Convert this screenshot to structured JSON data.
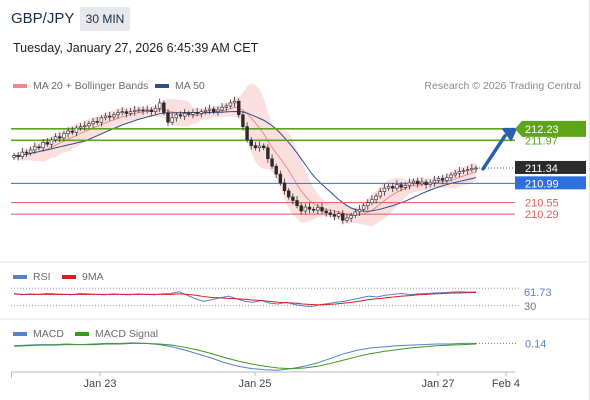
{
  "header": {
    "symbol": "GBP/JPY",
    "timeframe": "30 MIN",
    "timestamp": "Tuesday, January 27, 2026 6:45:39 AM CET",
    "credit": "Research © 2026 Trading Central"
  },
  "legends": {
    "main": [
      {
        "label": "MA 20 + Bollinger Bands",
        "color": "#f08a8a"
      },
      {
        "label": "MA 50",
        "color": "#2e4f86"
      }
    ],
    "rsi": [
      {
        "label": "RSI",
        "color": "#5b7fc4"
      },
      {
        "label": "9MA",
        "color": "#d32020"
      }
    ],
    "macd": [
      {
        "label": "MACD",
        "color": "#5b7fc4"
      },
      {
        "label": "MACD Signal",
        "color": "#3a9a1a"
      }
    ]
  },
  "colors": {
    "up": "#2a2a2a",
    "down": "#2a2a2a",
    "bollinger_fill": "#fbdada",
    "resistance": "#5ea51a",
    "pivot": "#2f6fe0",
    "support": "#e05a5a",
    "arrow": "#2a5fb0"
  },
  "chart_data": [
    {
      "type": "candlestick",
      "x_labels": [
        "Jan 23",
        "Jan 25",
        "Jan 27",
        "Feb 4"
      ],
      "ylim": [
        209.2,
        213.0
      ],
      "levels": [
        {
          "value": 212.23,
          "label": "212.23",
          "kind": "resistance",
          "highlight": true
        },
        {
          "value": 211.97,
          "label": "211.97",
          "kind": "resistance"
        },
        {
          "value": 211.34,
          "label": "211.34",
          "kind": "last_price"
        },
        {
          "value": 210.99,
          "label": "210.99",
          "kind": "pivot"
        },
        {
          "value": 210.55,
          "label": "210.55",
          "kind": "support"
        },
        {
          "value": 210.29,
          "label": "210.29",
          "kind": "support"
        }
      ],
      "closes": [
        211.62,
        211.6,
        211.7,
        211.68,
        211.75,
        211.82,
        211.8,
        211.92,
        211.88,
        211.98,
        212.05,
        212.02,
        212.12,
        212.18,
        212.15,
        212.25,
        212.28,
        212.3,
        212.35,
        212.4,
        212.38,
        212.48,
        212.52,
        212.5,
        212.55,
        212.6,
        212.62,
        212.58,
        212.62,
        212.65,
        212.66,
        212.64,
        212.66,
        212.62,
        212.7,
        212.82,
        212.6,
        212.38,
        212.48,
        212.55,
        212.52,
        212.58,
        212.56,
        212.6,
        212.58,
        212.62,
        212.65,
        212.68,
        212.62,
        212.66,
        212.72,
        212.75,
        212.82,
        212.86,
        212.55,
        212.28,
        211.98,
        211.85,
        211.8,
        211.84,
        211.8,
        211.55,
        211.38,
        211.2,
        211.0,
        210.82,
        210.68,
        210.6,
        210.48,
        210.36,
        210.45,
        210.4,
        210.38,
        210.44,
        210.36,
        210.32,
        210.28,
        210.24,
        210.3,
        210.15,
        210.2,
        210.26,
        210.34,
        210.4,
        210.48,
        210.55,
        210.62,
        210.7,
        210.8,
        210.88,
        210.92,
        210.88,
        210.96,
        210.9,
        210.94,
        211.0,
        211.04,
        210.98,
        211.02,
        210.96,
        211.0,
        211.06,
        211.1,
        211.06,
        211.12,
        211.18,
        211.22,
        211.26,
        211.28,
        211.3,
        211.33,
        211.34
      ]
    },
    {
      "type": "line",
      "name": "RSI",
      "ylim": [
        0,
        100
      ],
      "ticks": [
        {
          "value": 61.73,
          "label": "61.73"
        },
        {
          "value": 30,
          "label": "30"
        }
      ],
      "series": [
        {
          "name": "RSI",
          "values": [
            58,
            55,
            57,
            56,
            58,
            57,
            56,
            55,
            58,
            57,
            56,
            55,
            57,
            56,
            55,
            57,
            56,
            55,
            57,
            58,
            62,
            54,
            46,
            40,
            44,
            48,
            52,
            46,
            40,
            38,
            42,
            36,
            34,
            38,
            33,
            30,
            28,
            32,
            35,
            38,
            40,
            44,
            48,
            52,
            50,
            54,
            56,
            58,
            55,
            57,
            58,
            59,
            60,
            61,
            62,
            61,
            61.73
          ]
        },
        {
          "name": "9MA",
          "values": [
            57,
            56,
            56,
            56,
            56,
            56,
            56,
            56,
            56,
            56,
            56,
            56,
            56,
            56,
            56,
            56,
            56,
            56,
            56,
            56,
            57,
            56,
            54,
            51,
            49,
            48,
            47,
            46,
            45,
            43,
            42,
            40,
            38,
            37,
            36,
            34,
            33,
            32,
            33,
            34,
            36,
            38,
            41,
            44,
            46,
            48,
            50,
            52,
            53,
            55,
            56,
            57,
            58,
            59,
            59,
            60,
            60
          ]
        }
      ]
    },
    {
      "type": "line",
      "name": "MACD",
      "ticks": [
        {
          "value": 0.14,
          "label": "0.14"
        }
      ],
      "series": [
        {
          "name": "MACD",
          "values": [
            0.1,
            0.11,
            0.12,
            0.12,
            0.13,
            0.12,
            0.13,
            0.14,
            0.14,
            0.15,
            0.14,
            0.12,
            0.08,
            0.02,
            -0.05,
            -0.12,
            -0.2,
            -0.26,
            -0.3,
            -0.32,
            -0.33,
            -0.3,
            -0.26,
            -0.2,
            -0.12,
            -0.04,
            0.02,
            0.06,
            0.08,
            0.1,
            0.11,
            0.12,
            0.13,
            0.13,
            0.14,
            0.14
          ]
        },
        {
          "name": "MACD Signal",
          "values": [
            0.09,
            0.1,
            0.11,
            0.11,
            0.12,
            0.12,
            0.12,
            0.13,
            0.13,
            0.14,
            0.14,
            0.13,
            0.11,
            0.07,
            0.02,
            -0.04,
            -0.11,
            -0.17,
            -0.22,
            -0.26,
            -0.29,
            -0.3,
            -0.29,
            -0.26,
            -0.21,
            -0.15,
            -0.09,
            -0.04,
            0.0,
            0.03,
            0.06,
            0.08,
            0.1,
            0.11,
            0.12,
            0.13
          ]
        }
      ]
    }
  ]
}
